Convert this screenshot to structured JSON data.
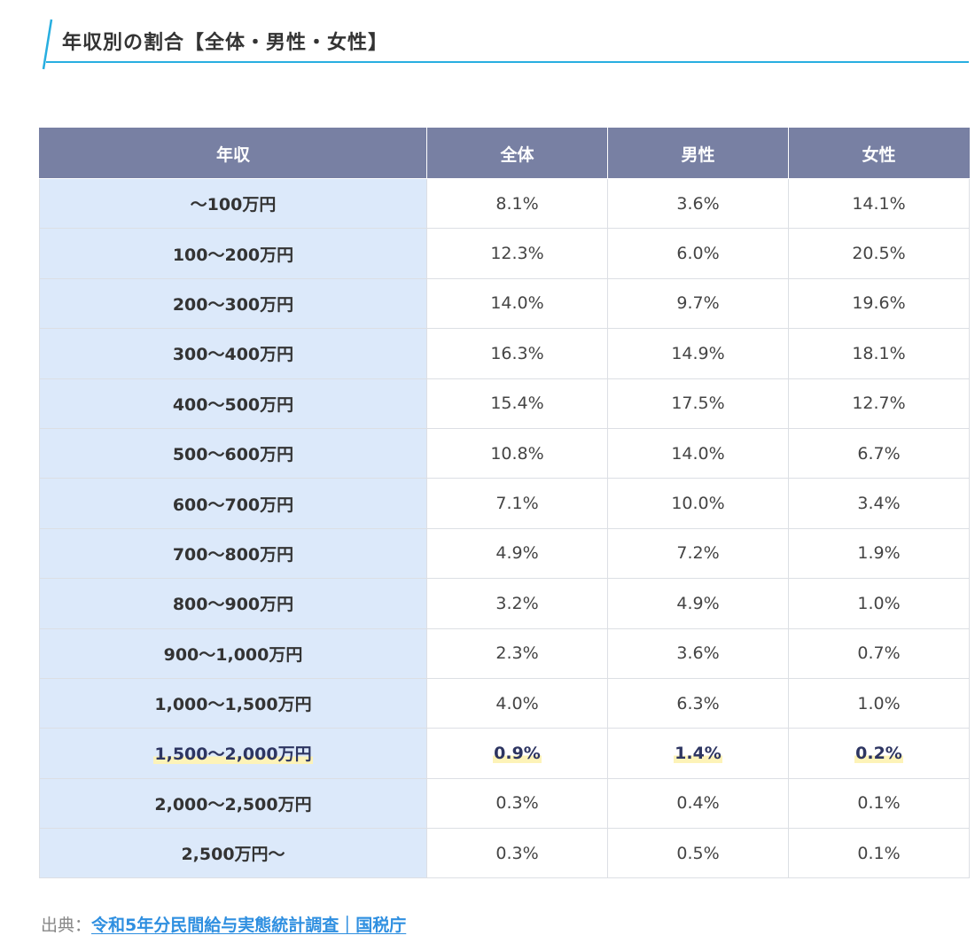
{
  "heading": {
    "title": "年収別の割合【全体・男性・女性】"
  },
  "table": {
    "headers": [
      "年収",
      "全体",
      "男性",
      "女性"
    ],
    "rows": [
      {
        "range": "～100万円",
        "all": "8.1%",
        "male": "3.6%",
        "female": "14.1%"
      },
      {
        "range": "100～200万円",
        "all": "12.3%",
        "male": "6.0%",
        "female": "20.5%"
      },
      {
        "range": "200～300万円",
        "all": "14.0%",
        "male": "9.7%",
        "female": "19.6%"
      },
      {
        "range": "300～400万円",
        "all": "16.3%",
        "male": "14.9%",
        "female": "18.1%"
      },
      {
        "range": "400～500万円",
        "all": "15.4%",
        "male": "17.5%",
        "female": "12.7%"
      },
      {
        "range": "500～600万円",
        "all": "10.8%",
        "male": "14.0%",
        "female": "6.7%"
      },
      {
        "range": "600～700万円",
        "all": "7.1%",
        "male": "10.0%",
        "female": "3.4%"
      },
      {
        "range": "700～800万円",
        "all": "4.9%",
        "male": "7.2%",
        "female": "1.9%"
      },
      {
        "range": "800～900万円",
        "all": "3.2%",
        "male": "4.9%",
        "female": "1.0%"
      },
      {
        "range": "900～1,000万円",
        "all": "2.3%",
        "male": "3.6%",
        "female": "0.7%"
      },
      {
        "range": "1,000～1,500万円",
        "all": "4.0%",
        "male": "6.3%",
        "female": "1.0%"
      },
      {
        "range": "1,500～2,000万円",
        "all": "0.9%",
        "male": "1.4%",
        "female": "0.2%"
      },
      {
        "range": "2,000～2,500万円",
        "all": "0.3%",
        "male": "0.4%",
        "female": "0.1%"
      },
      {
        "range": "2,500万円～",
        "all": "0.3%",
        "male": "0.5%",
        "female": "0.1%"
      }
    ]
  },
  "source": {
    "label": "出典：",
    "link_text": "令和5年分民間給与実態統計調査｜国税庁"
  },
  "colors": {
    "accent_rule": "#27aee0",
    "header_bg": "#7880a3",
    "range_cell_bg": "#dce9fa",
    "highlight_marker": "#fdf3b8",
    "link": "#2f8fe0"
  }
}
